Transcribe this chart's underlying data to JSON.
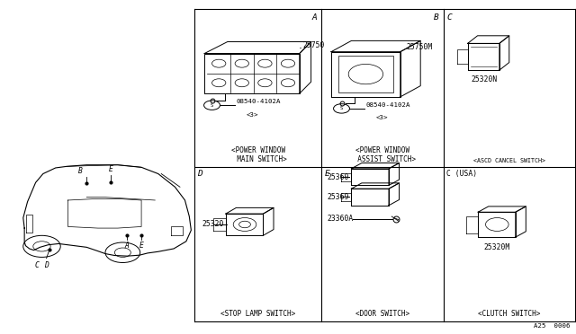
{
  "bg_color": "#ffffff",
  "line_color": "#000000",
  "text_color": "#000000",
  "diagram_ref": "A25  0006",
  "grid": {
    "col1": 0.338,
    "col2": 0.558,
    "col3": 0.77,
    "col4": 0.998,
    "row1": 0.972,
    "row2": 0.5,
    "row3": 0.038
  },
  "section_labels_top": {
    "A": [
      0.553,
      0.96
    ],
    "B": [
      0.763,
      0.96
    ],
    "C": [
      0.775,
      0.96
    ]
  },
  "section_labels_bot": {
    "D": [
      0.342,
      0.488
    ],
    "E": [
      0.562,
      0.488
    ],
    "C_USA": [
      0.772,
      0.488
    ]
  },
  "titles": {
    "pwm": "<POWER WINDOW\n  MAIN SWITCH>",
    "pwa": "<POWER WINDOW\n  ASSIST SWITCH>",
    "ascd": "<ASCD CANCEL SWITCH>",
    "stop": "<STOP LAMP SWITCH>",
    "door": "<DOOR SWITCH>",
    "clutch": "<CLUTCH SWITCH>"
  },
  "font_size": 5.8
}
